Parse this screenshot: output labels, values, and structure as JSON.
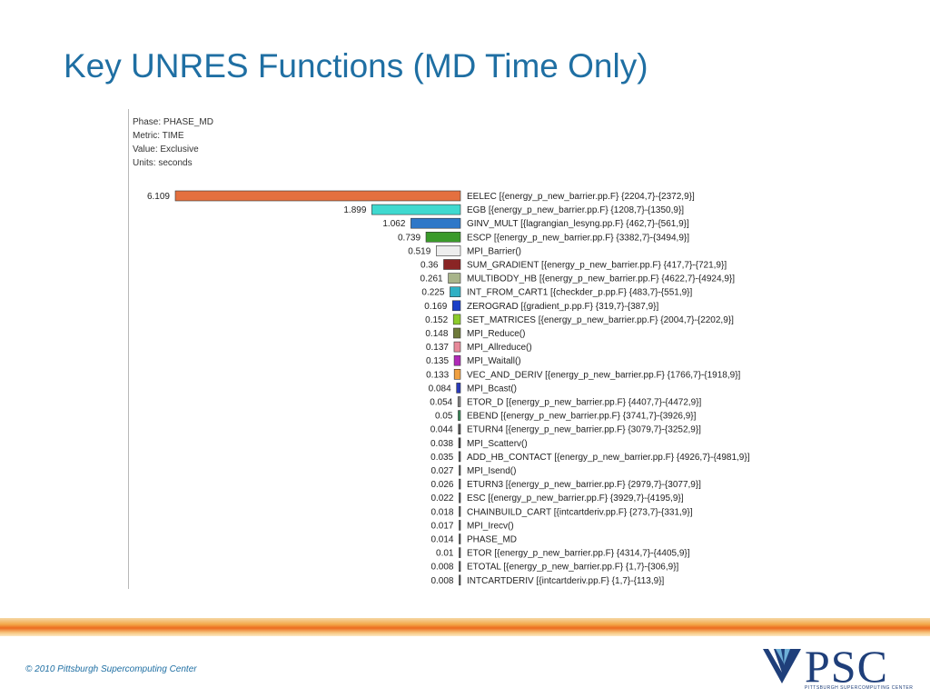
{
  "slide": {
    "title": "Key UNRES Functions (MD Time Only)",
    "copyright": "© 2010 Pittsburgh Supercomputing Center"
  },
  "logo": {
    "text": "PSC",
    "tagline": "PITTSBURGH SUPERCOMPUTING CENTER"
  },
  "metadata": {
    "phase": "Phase: PHASE_MD",
    "metric": "Metric: TIME",
    "value": "Value: Exclusive",
    "units": "Units: seconds"
  },
  "chart_data": {
    "type": "bar",
    "orientation": "horizontal",
    "grid": false,
    "bars": [
      {
        "value": 6.109,
        "value_label": "6.109",
        "label": "EELEC [{energy_p_new_barrier.pp.F} {2204,7}-{2372,9}]",
        "color": "#e4703f"
      },
      {
        "value": 1.899,
        "value_label": "1.899",
        "label": "EGB [{energy_p_new_barrier.pp.F} {1208,7}-{1350,9}]",
        "color": "#3fd9cf"
      },
      {
        "value": 1.062,
        "value_label": "1.062",
        "label": "GINV_MULT [{lagrangian_lesyng.pp.F} {462,7}-{561,9}]",
        "color": "#2f78c8"
      },
      {
        "value": 0.739,
        "value_label": "0.739",
        "label": "ESCP [{energy_p_new_barrier.pp.F} {3382,7}-{3494,9}]",
        "color": "#3a9a2a"
      },
      {
        "value": 0.519,
        "value_label": "0.519",
        "label": "MPI_Barrier()",
        "color": "#eeeeee"
      },
      {
        "value": 0.36,
        "value_label": "0.36",
        "label": "SUM_GRADIENT [{energy_p_new_barrier.pp.F} {417,7}-{721,9}]",
        "color": "#8a2424"
      },
      {
        "value": 0.261,
        "value_label": "0.261",
        "label": "MULTIBODY_HB [{energy_p_new_barrier.pp.F} {4622,7}-{4924,9}]",
        "color": "#a8b48a"
      },
      {
        "value": 0.225,
        "value_label": "0.225",
        "label": "INT_FROM_CART1 [{checkder_p.pp.F} {483,7}-{551,9}]",
        "color": "#2fb0c4"
      },
      {
        "value": 0.169,
        "value_label": "0.169",
        "label": "ZEROGRAD [{gradient_p.pp.F} {319,7}-{387,9}]",
        "color": "#1a3fc8"
      },
      {
        "value": 0.152,
        "value_label": "0.152",
        "label": "SET_MATRICES [{energy_p_new_barrier.pp.F} {2004,7}-{2202,9}]",
        "color": "#8ccc2a"
      },
      {
        "value": 0.148,
        "value_label": "0.148",
        "label": "MPI_Reduce()",
        "color": "#6e7a3a"
      },
      {
        "value": 0.137,
        "value_label": "0.137",
        "label": "MPI_Allreduce()",
        "color": "#e88a9a"
      },
      {
        "value": 0.135,
        "value_label": "0.135",
        "label": "MPI_Waitall()",
        "color": "#b02ab8"
      },
      {
        "value": 0.133,
        "value_label": "0.133",
        "label": "VEC_AND_DERIV [{energy_p_new_barrier.pp.F} {1766,7}-{1918,9}]",
        "color": "#f0a040"
      },
      {
        "value": 0.084,
        "value_label": "0.084",
        "label": "MPI_Bcast()",
        "color": "#2a3ab8"
      },
      {
        "value": 0.054,
        "value_label": "0.054",
        "label": "ETOR_D [{energy_p_new_barrier.pp.F} {4407,7}-{4472,9}]",
        "color": "#888888"
      },
      {
        "value": 0.05,
        "value_label": "0.05",
        "label": "EBEND [{energy_p_new_barrier.pp.F} {3741,7}-{3926,9}]",
        "color": "#3a8a5a"
      },
      {
        "value": 0.044,
        "value_label": "0.044",
        "label": "ETURN4 [{energy_p_new_barrier.pp.F} {3079,7}-{3252,9}]",
        "color": "#555555"
      },
      {
        "value": 0.038,
        "value_label": "0.038",
        "label": "MPI_Scatterv()",
        "color": "#444444"
      },
      {
        "value": 0.035,
        "value_label": "0.035",
        "label": "ADD_HB_CONTACT [{energy_p_new_barrier.pp.F} {4926,7}-{4981,9}]",
        "color": "#666666"
      },
      {
        "value": 0.027,
        "value_label": "0.027",
        "label": "MPI_Isend()",
        "color": "#555555"
      },
      {
        "value": 0.026,
        "value_label": "0.026",
        "label": "ETURN3 [{energy_p_new_barrier.pp.F} {2979,7}-{3077,9}]",
        "color": "#555555"
      },
      {
        "value": 0.022,
        "value_label": "0.022",
        "label": "ESC [{energy_p_new_barrier.pp.F} {3929,7}-{4195,9}]",
        "color": "#555555"
      },
      {
        "value": 0.018,
        "value_label": "0.018",
        "label": "CHAINBUILD_CART [{intcartderiv.pp.F} {273,7}-{331,9}]",
        "color": "#555555"
      },
      {
        "value": 0.017,
        "value_label": "0.017",
        "label": "MPI_Irecv()",
        "color": "#555555"
      },
      {
        "value": 0.014,
        "value_label": "0.014",
        "label": "PHASE_MD",
        "color": "#555555"
      },
      {
        "value": 0.01,
        "value_label": "0.01",
        "label": "ETOR [{energy_p_new_barrier.pp.F} {4314,7}-{4405,9}]",
        "color": "#555555"
      },
      {
        "value": 0.008,
        "value_label": "0.008",
        "label": "ETOTAL [{energy_p_new_barrier.pp.F} {1,7}-{306,9}]",
        "color": "#555555"
      },
      {
        "value": 0.008,
        "value_label": "0.008",
        "label": "INTCARTDERIV [{intcartderiv.pp.F} {1,7}-{113,9}]",
        "color": "#555555"
      }
    ]
  }
}
